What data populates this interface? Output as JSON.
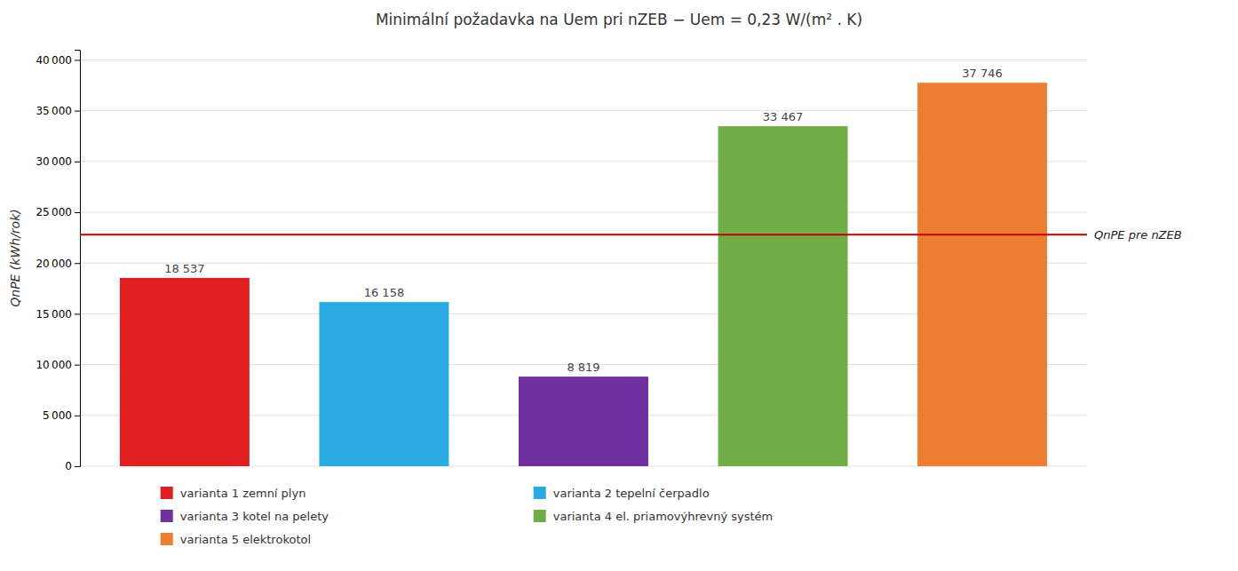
{
  "chart_data": {
    "type": "bar",
    "title": "Minimální požadavka na Uem pri nZEB − Uem = 0,23 W/(m² . K)",
    "ylabel": "QnPE (kWh/rok)",
    "categories": [
      "varianta 1 zemní plyn",
      "varianta 2 tepelní čerpadlo",
      "varianta 3 kotel na pelety",
      "varianta 4 el. priamovýhrevný systém",
      "varianta 5 elektrokotol"
    ],
    "values": [
      18537,
      16158,
      8819,
      33467,
      37746
    ],
    "value_labels": [
      "18 537",
      "16 158",
      "8 819",
      "33 467",
      "37 746"
    ],
    "colors": [
      "#e02020",
      "#29abe2",
      "#7030a0",
      "#70ad47",
      "#ed7d31"
    ],
    "ylim": [
      0,
      41000
    ],
    "yticks": [
      0,
      {
        "value": 5000,
        "label": "5 000"
      },
      {
        "value": 10000,
        "label": "10 000"
      },
      {
        "value": 15000,
        "label": "15 000"
      },
      {
        "value": 20000,
        "label": "20 000"
      },
      {
        "value": 25000,
        "label": "25 000"
      },
      {
        "value": 30000,
        "label": "30 000"
      },
      {
        "value": 35000,
        "label": "35 000"
      },
      {
        "value": 40000,
        "label": "40 000"
      }
    ],
    "annotations": [
      {
        "text": "QnPE pre nZEB",
        "y": 22800,
        "color": "#c00000"
      }
    ],
    "grid": true,
    "data_labels": true,
    "tick_labels": "y",
    "legend": "bottom"
  }
}
